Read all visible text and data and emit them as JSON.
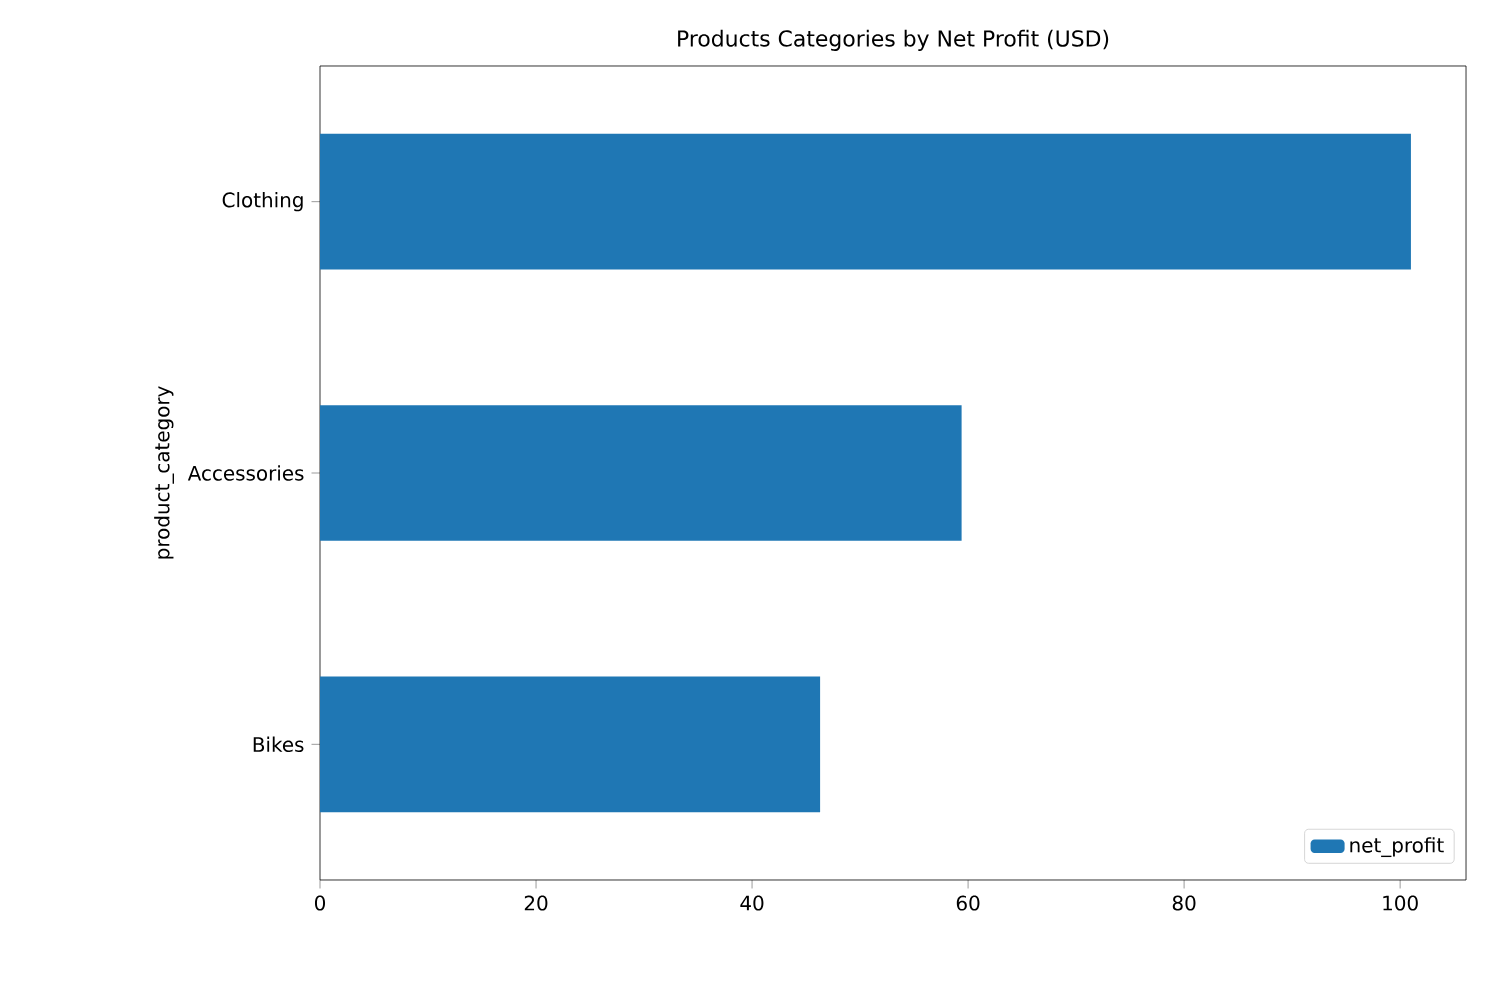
{
  "chart_data": {
    "type": "bar",
    "orientation": "horizontal",
    "title": "Products Categories by Net Profit (USD)",
    "ylabel": "product_category",
    "categories": [
      "Clothing",
      "Accessories",
      "Bikes"
    ],
    "series": [
      {
        "name": "net_profit",
        "color": "#1f77b4",
        "values": [
          101,
          59.4,
          46.3
        ]
      }
    ],
    "xlim": [
      0,
      106.1
    ],
    "xticks": [
      0,
      20,
      40,
      60,
      80,
      100
    ],
    "legend": "bottom right",
    "grid": false
  }
}
